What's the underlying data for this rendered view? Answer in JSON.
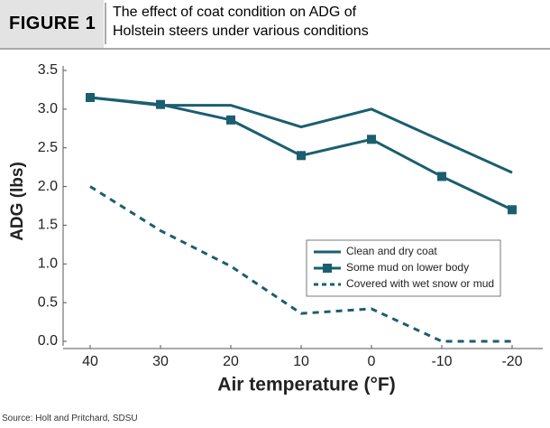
{
  "chart_data": {
    "type": "line",
    "figure_label": "FIGURE 1",
    "title": "The effect of coat condition on ADG of Holstein steers under various conditions",
    "xlabel": "Air temperature (°F)",
    "ylabel": "ADG (lbs)",
    "source": "Source: Holt and Pritchard, SDSU",
    "x": [
      40,
      30,
      20,
      10,
      0,
      -10,
      -20
    ],
    "xlim": [
      45,
      -25
    ],
    "xticks": [
      40,
      30,
      20,
      10,
      0,
      -10,
      -20
    ],
    "ylim": [
      0,
      3.5
    ],
    "yticks": [
      {
        "value": 0,
        "label": "0.0"
      },
      0.5,
      {
        "value": 1,
        "label": "1.0"
      },
      1.5,
      {
        "value": 2,
        "label": "2.0"
      },
      2.5,
      {
        "value": 3,
        "label": "3.0"
      },
      3.5
    ],
    "legend": "center-right",
    "series": [
      {
        "name": "Clean and dry coat",
        "color": "#1b5e70",
        "line_style": "solid",
        "marker": "none",
        "values": [
          3.15,
          3.05,
          3.05,
          2.77,
          3.0,
          2.59,
          2.18
        ]
      },
      {
        "name": "Some mud on lower body",
        "color": "#1b5e70",
        "line_style": "solid",
        "marker": "square",
        "values": [
          3.15,
          3.06,
          2.86,
          2.4,
          2.61,
          2.13,
          1.7
        ]
      },
      {
        "name": "Covered with wet snow or mud",
        "color": "#1b5e70",
        "line_style": "dashed",
        "marker": "none",
        "values": [
          2.0,
          1.43,
          0.97,
          0.36,
          0.42,
          0.0,
          0.0
        ]
      }
    ]
  }
}
